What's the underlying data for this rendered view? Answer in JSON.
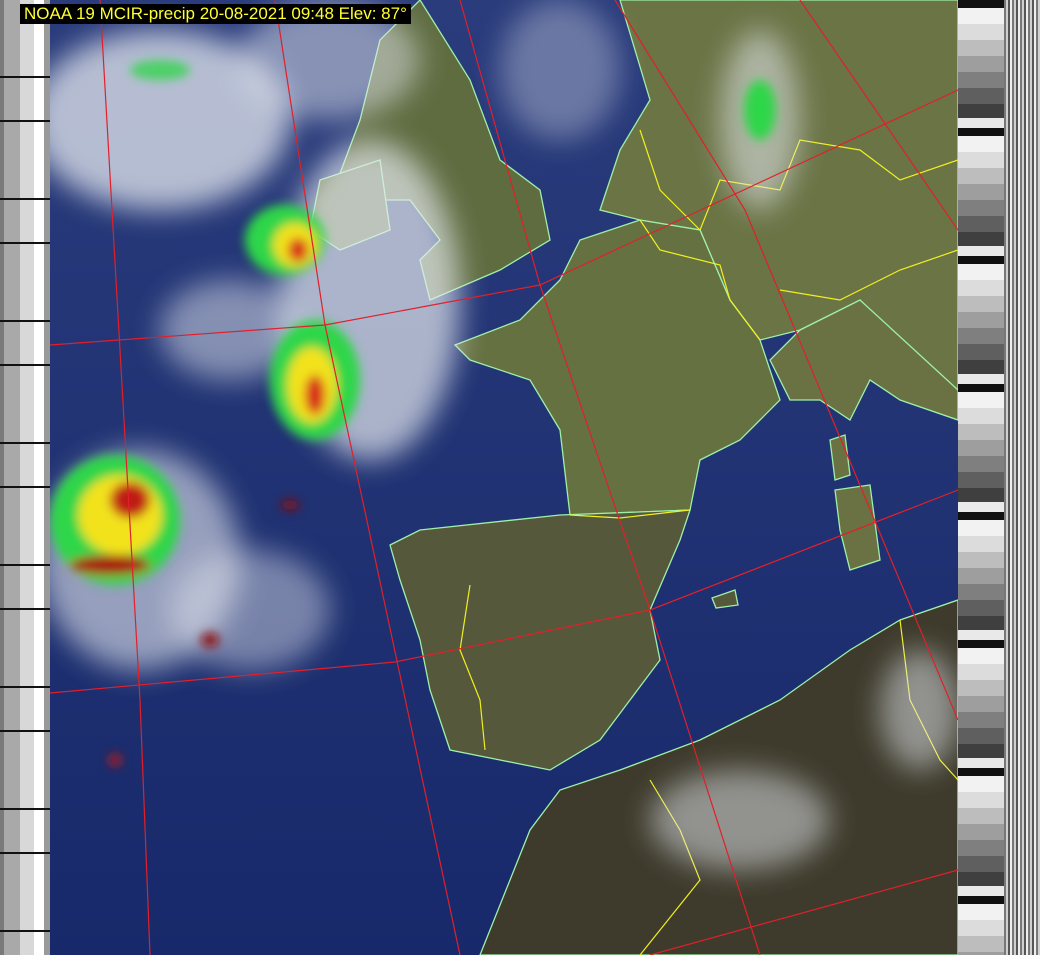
{
  "overlay_label": "NOAA 19 MCIR-precip 20-08-2021 09:48 Elev: 87°",
  "colors": {
    "ocean": "#1b2d6b",
    "land": "#5f6a3e",
    "land_south": "#4a4632",
    "coastline": "#9ef0a8",
    "borders": "#f0f020",
    "graticule": "#e0202a",
    "label_text": "#ffff33",
    "label_background": "#000000"
  },
  "layers": [
    "telemetry-strip-left",
    "satellite-image",
    "coastlines",
    "country-borders",
    "graticule",
    "precipitation",
    "telemetry-strip-right"
  ]
}
